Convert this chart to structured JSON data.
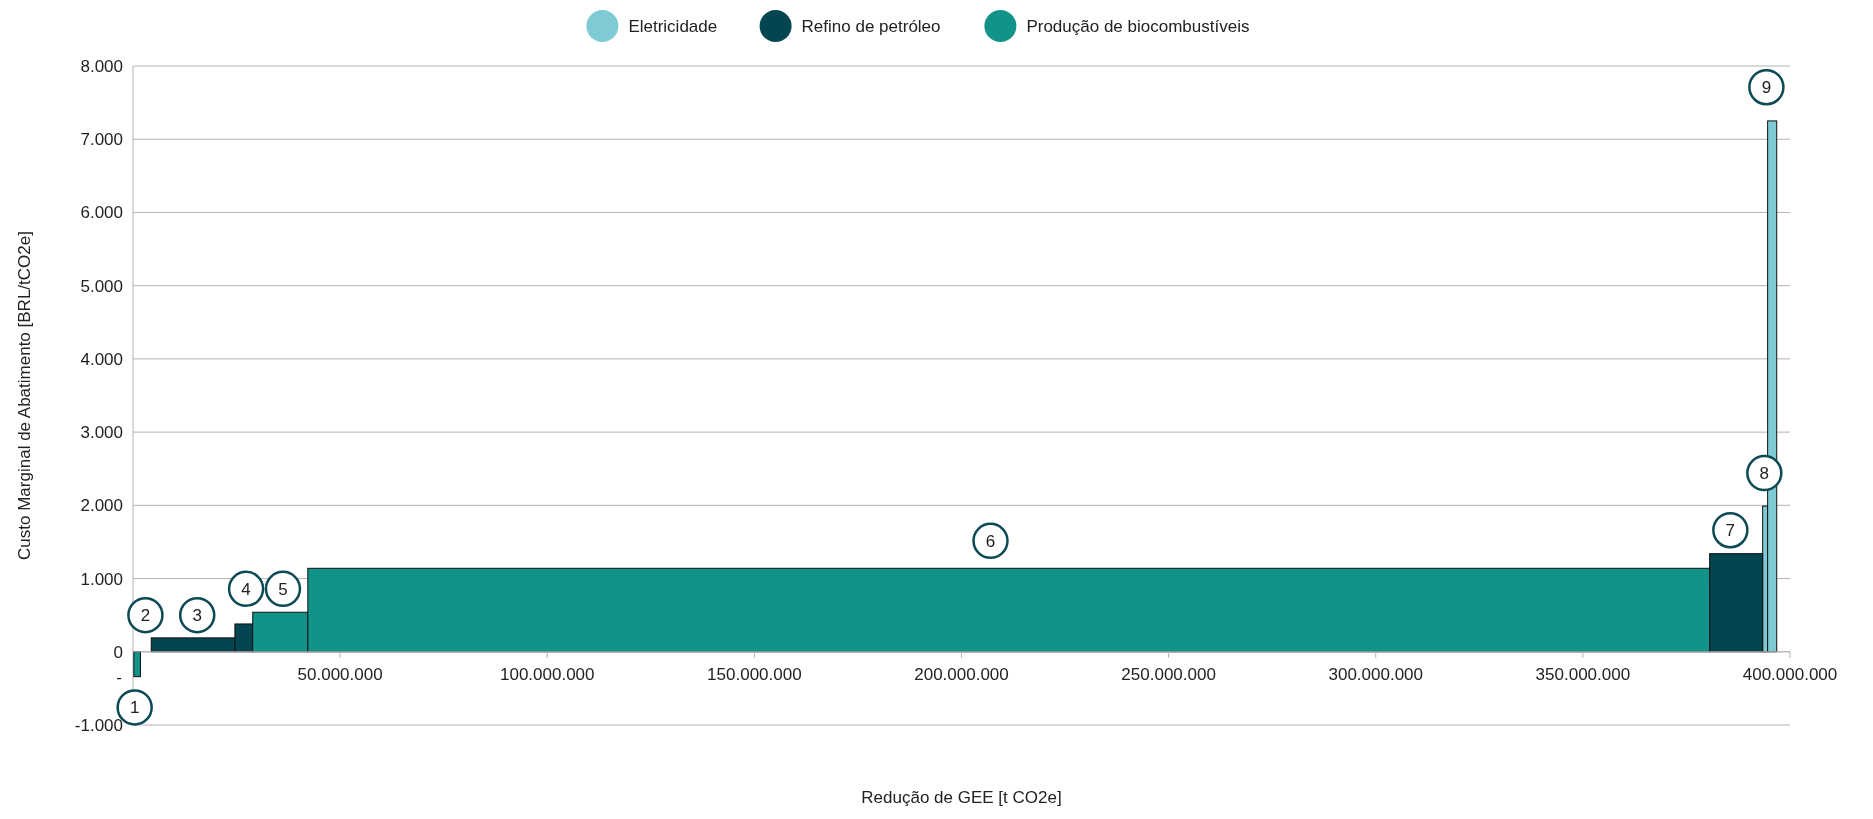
{
  "chart_data": {
    "type": "histogram",
    "xlabel": "Redução de GEE [t CO2e]",
    "ylabel": "Custo Marginal de Abatimento [BRL/tCO2e]",
    "bins": [
      200000,
      1800000,
      4400000,
      24600000,
      28900000,
      42200000,
      380600000,
      393400000,
      394600000,
      396800000
    ],
    "series": [
      {
        "name": "Eletricidade",
        "color": "#7ecbd6",
        "values": [
          null,
          null,
          null,
          null,
          null,
          null,
          null,
          1990,
          7250
        ]
      },
      {
        "name": "Refino de petróleo",
        "color": "#034550",
        "values": [
          null,
          0,
          190,
          380,
          null,
          null,
          1340,
          null,
          null
        ]
      },
      {
        "name": "Produção de biocombustíveis",
        "color": "#129389",
        "values": [
          -340,
          null,
          null,
          null,
          540,
          1140,
          null,
          null,
          null
        ]
      }
    ],
    "xlim": [
      0,
      400000000
    ],
    "xticks": [
      {
        "value": 50000000,
        "label": "50.000.000"
      },
      {
        "value": 100000000,
        "label": "100.000.000"
      },
      {
        "value": 150000000,
        "label": "150.000.000"
      },
      {
        "value": 200000000,
        "label": "200.000.000"
      },
      {
        "value": 250000000,
        "label": "250.000.000"
      },
      {
        "value": 300000000,
        "label": "300.000.000"
      },
      {
        "value": 350000000,
        "label": "350.000.000"
      },
      {
        "value": 400000000,
        "label": "400.000.000"
      }
    ],
    "ylim": [
      -1000,
      8000
    ],
    "yticks": [
      {
        "value": -1000,
        "label": "-1.000"
      },
      0,
      {
        "value": 1000,
        "label": "1.000"
      },
      {
        "value": 2000,
        "label": "2.000"
      },
      {
        "value": 3000,
        "label": "3.000"
      },
      {
        "value": 4000,
        "label": "4.000"
      },
      {
        "value": 5000,
        "label": "5.000"
      },
      {
        "value": 6000,
        "label": "6.000"
      },
      {
        "value": 7000,
        "label": "7.000"
      },
      {
        "value": 8000,
        "label": "8.000"
      }
    ],
    "grid": "y",
    "legend": "top",
    "annotations": [
      {
        "text": "1",
        "x": 400000,
        "y": -760
      },
      {
        "text": "2",
        "x": 3000000,
        "y": 500
      },
      {
        "text": "3",
        "x": 15500000,
        "y": 500
      },
      {
        "text": "4",
        "x": 27300000,
        "y": 860
      },
      {
        "text": "5",
        "x": 36200000,
        "y": 860
      },
      {
        "text": "6",
        "x": 207000000,
        "y": 1515
      },
      {
        "text": "7",
        "x": 385600000,
        "y": 1660
      },
      {
        "text": "8",
        "x": 393800000,
        "y": 2440
      },
      {
        "text": "9",
        "x": 394300000,
        "y": 7710
      },
      {
        "text": "-",
        "x": 0,
        "y": -340
      }
    ]
  }
}
